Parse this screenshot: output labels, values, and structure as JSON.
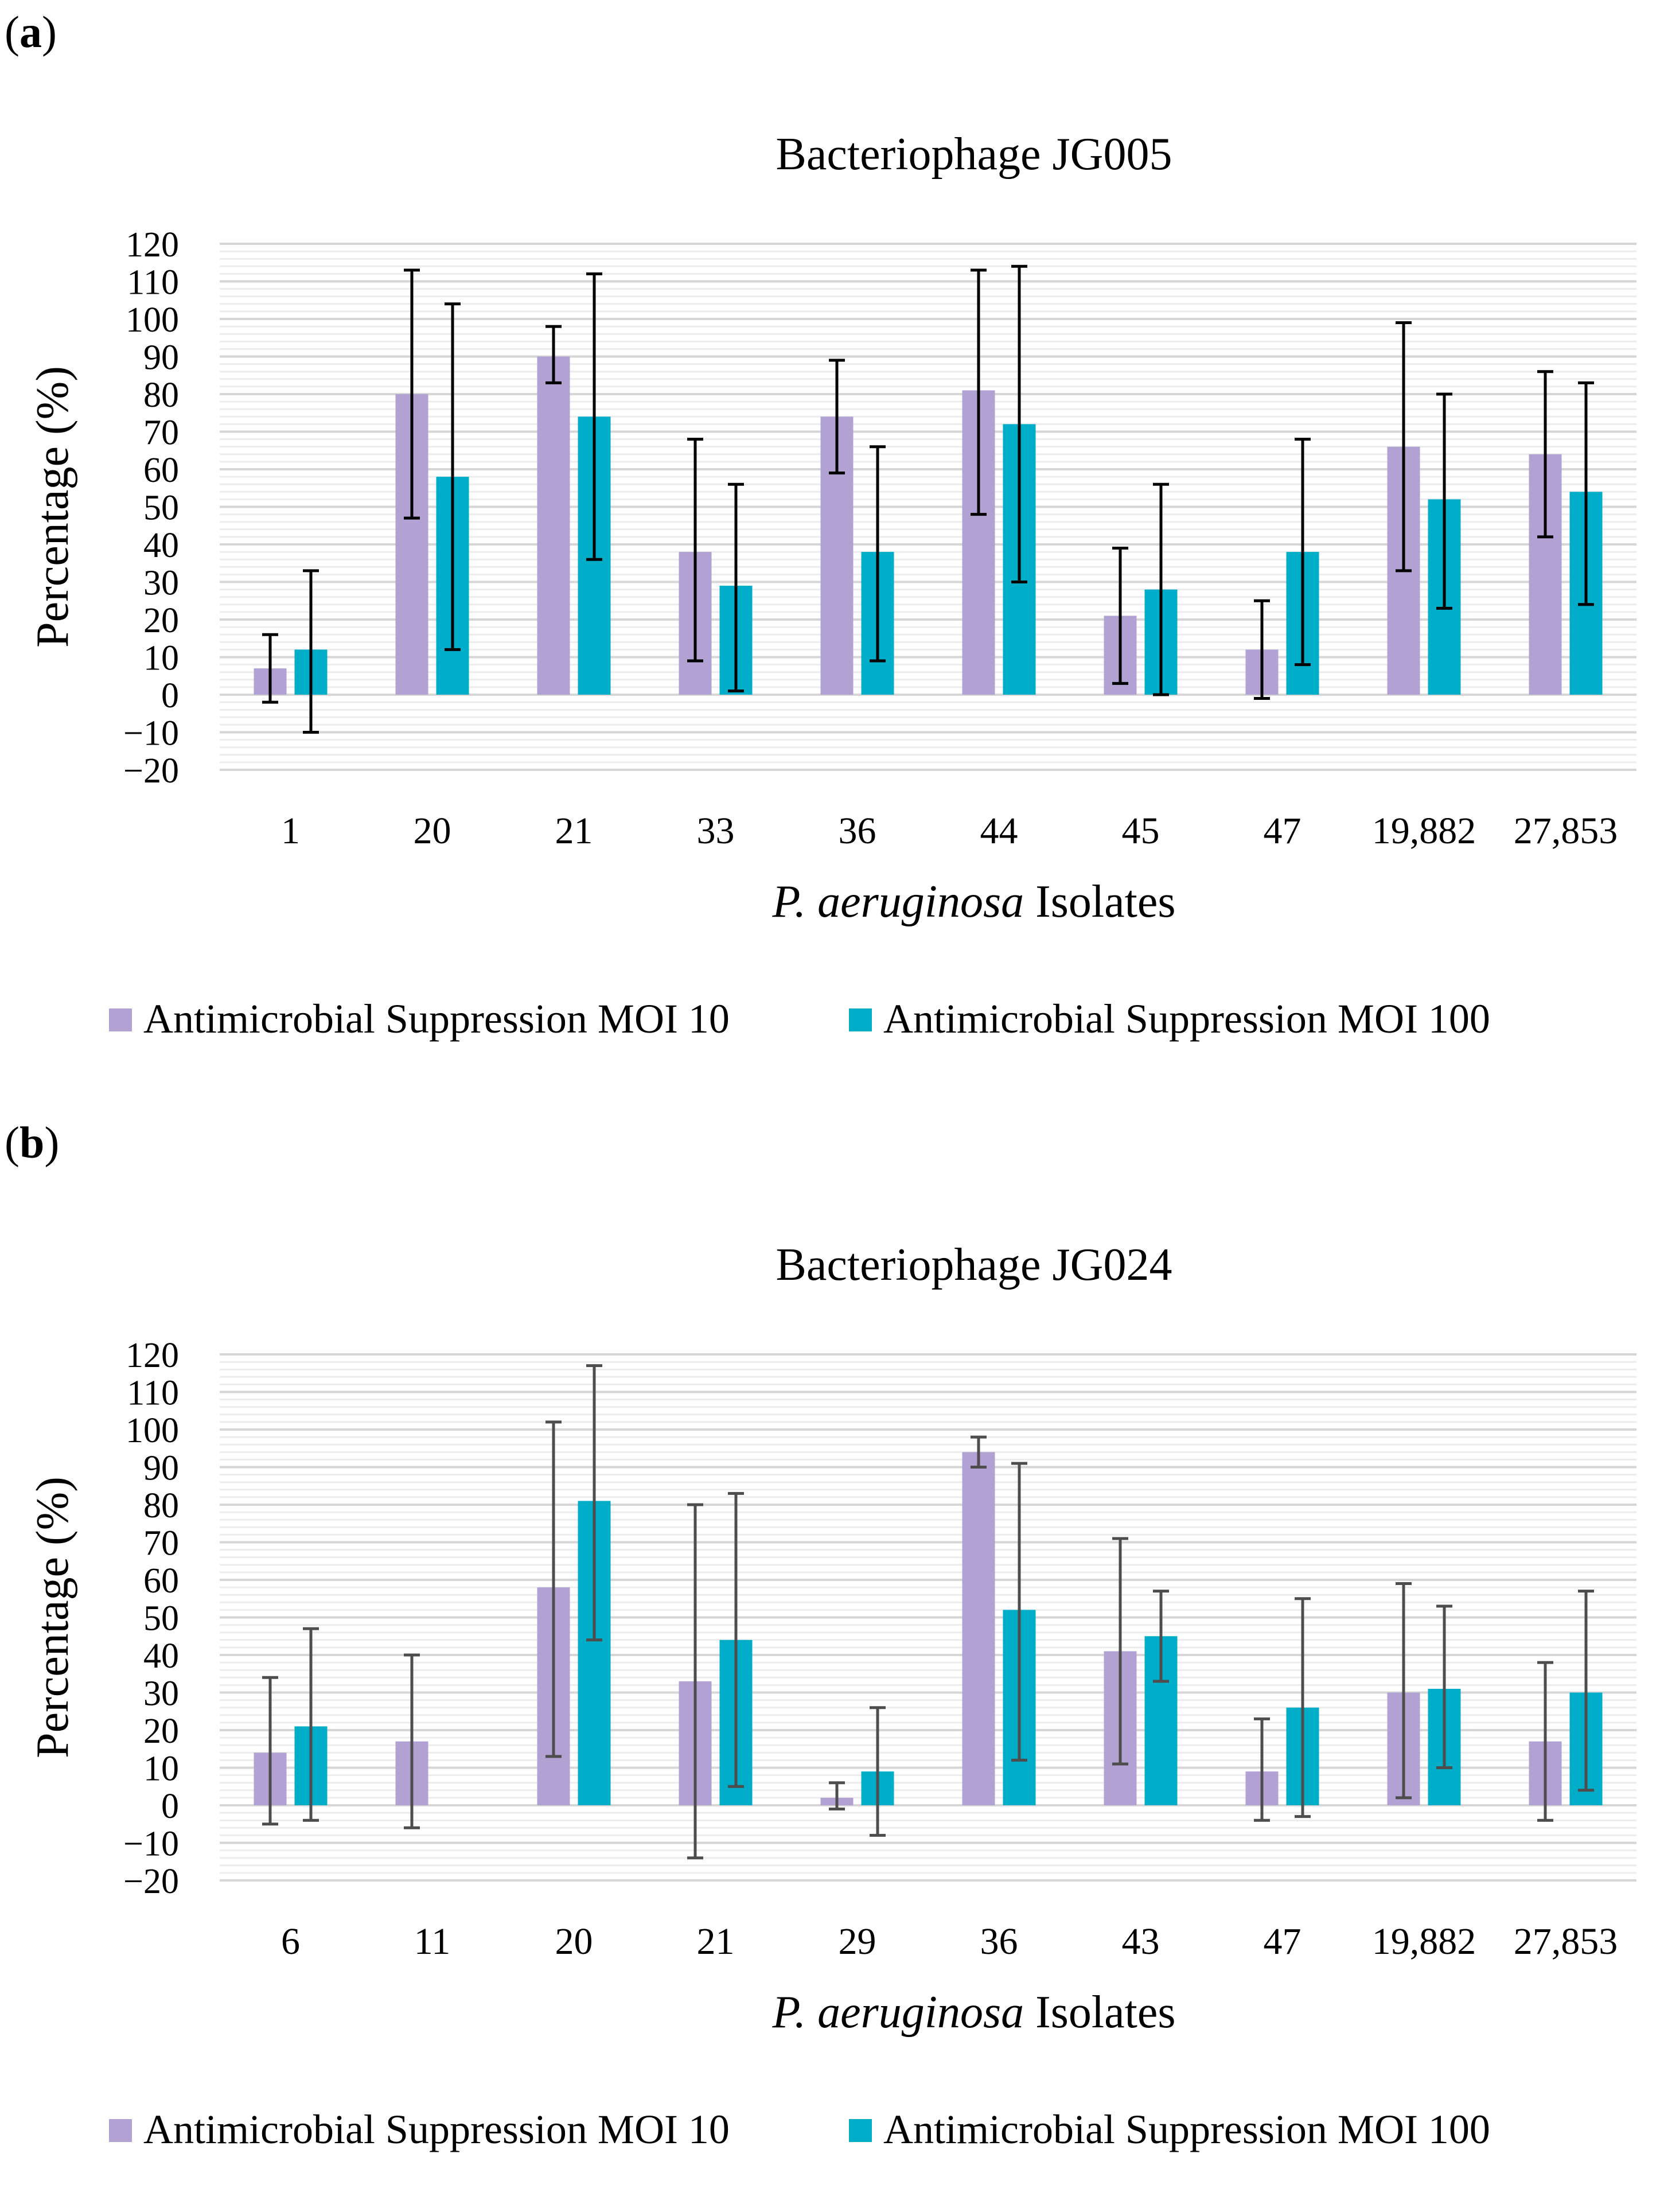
{
  "colors": {
    "moi10": "#b2a1d3",
    "moi100": "#00adc8",
    "error_bar": "#000000",
    "error_bar_b": "#4d4d4d",
    "grid": "#d6d6d6",
    "grid_minor": "#ececec"
  },
  "chart_data": [
    {
      "type": "bar",
      "panel_label": "a",
      "title": "Bacteriophage JG005",
      "xlabel_italic": "P. aeruginosa",
      "xlabel_rest": " Isolates",
      "ylabel": "Percentage (%)",
      "ylim": [
        -20,
        120
      ],
      "ytick_step": 10,
      "ytick_labels": [
        "−20",
        "−10",
        "0",
        "10",
        "20",
        "30",
        "40",
        "50",
        "60",
        "70",
        "80",
        "90",
        "100",
        "110",
        "120"
      ],
      "grid": true,
      "legend_position": "bottom",
      "categories": [
        "1",
        "20",
        "21",
        "33",
        "36",
        "44",
        "45",
        "47",
        "19,882",
        "27,853"
      ],
      "series": [
        {
          "name": "Antimicrobial Suppression MOI 10",
          "color_key": "moi10",
          "values": [
            7,
            80,
            90,
            38,
            74,
            81,
            21,
            12,
            66,
            64
          ],
          "error_low": [
            -2,
            47,
            83,
            9,
            59,
            48,
            3,
            -1,
            33,
            42
          ],
          "error_high": [
            16,
            113,
            98,
            68,
            89,
            113,
            39,
            25,
            99,
            86
          ]
        },
        {
          "name": "Antimicrobial Suppression MOI 100",
          "color_key": "moi100",
          "values": [
            12,
            58,
            74,
            29,
            38,
            72,
            28,
            38,
            52,
            54
          ],
          "error_low": [
            -10,
            12,
            36,
            1,
            9,
            30,
            0,
            8,
            23,
            24
          ],
          "error_high": [
            33,
            104,
            112,
            56,
            66,
            114,
            56,
            68,
            80,
            83
          ]
        }
      ]
    },
    {
      "type": "bar",
      "panel_label": "b",
      "title": "Bacteriophage JG024",
      "xlabel_italic": "P. aeruginosa",
      "xlabel_rest": " Isolates",
      "ylabel": "Percentage (%)",
      "ylim": [
        -20,
        120
      ],
      "ytick_step": 10,
      "ytick_labels": [
        "−20",
        "−10",
        "0",
        "10",
        "20",
        "30",
        "40",
        "50",
        "60",
        "70",
        "80",
        "90",
        "100",
        "110",
        "120"
      ],
      "grid": true,
      "legend_position": "bottom",
      "categories": [
        "6",
        "11",
        "20",
        "21",
        "29",
        "36",
        "43",
        "47",
        "19,882",
        "27,853"
      ],
      "series": [
        {
          "name": "Antimicrobial Suppression MOI 10",
          "color_key": "moi10",
          "values": [
            14,
            17,
            58,
            33,
            2,
            94,
            41,
            9,
            30,
            17
          ],
          "error_low": [
            -5,
            -6,
            13,
            -14,
            -1,
            90,
            11,
            -4,
            2,
            -4
          ],
          "error_high": [
            34,
            40,
            102,
            80,
            6,
            98,
            71,
            23,
            59,
            38
          ]
        },
        {
          "name": "Antimicrobial Suppression MOI 100",
          "color_key": "moi100",
          "values": [
            21,
            null,
            81,
            44,
            9,
            52,
            45,
            26,
            31,
            30
          ],
          "error_low": [
            -4,
            null,
            44,
            5,
            -8,
            12,
            33,
            -3,
            10,
            4
          ],
          "error_high": [
            47,
            null,
            117,
            83,
            26,
            91,
            57,
            55,
            53,
            57
          ]
        }
      ]
    }
  ]
}
